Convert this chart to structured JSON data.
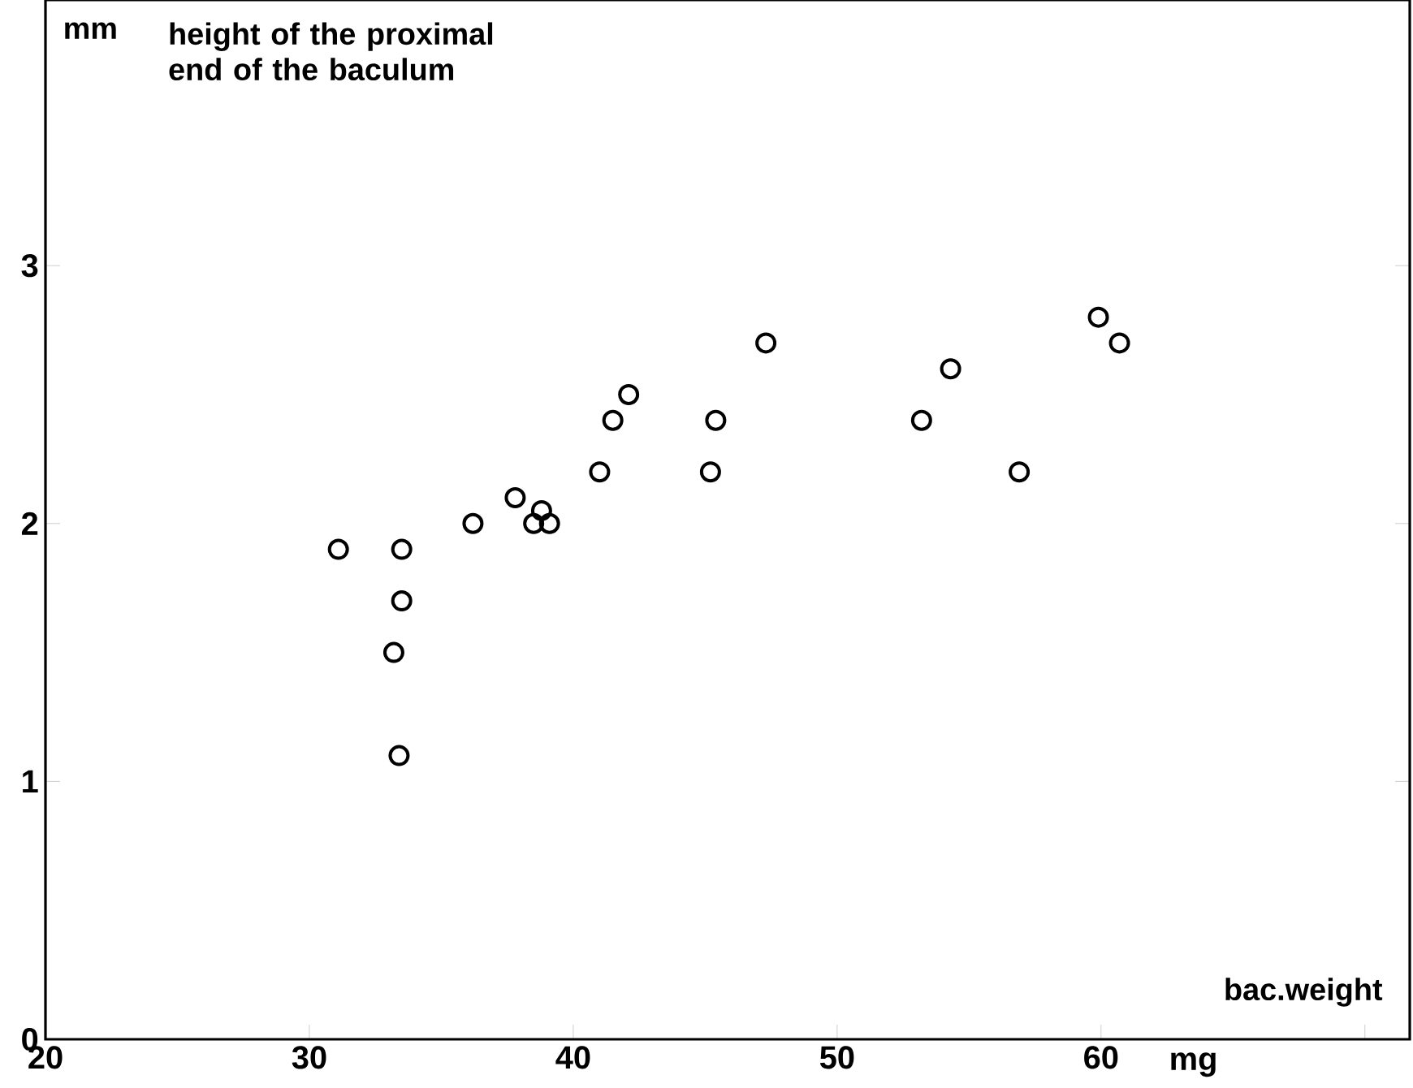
{
  "chart_data": {
    "type": "scatter",
    "title": "height of the proximal end of the baculum",
    "ylabel": "mm",
    "xlabel": "mg",
    "annotations": [
      "bac.weight"
    ],
    "x": [
      31.1,
      33.5,
      33.5,
      33.2,
      33.4,
      36.2,
      37.8,
      38.5,
      38.8,
      39.1,
      41.0,
      41.5,
      42.1,
      45.2,
      45.4,
      47.3,
      53.2,
      54.3,
      56.9,
      59.9,
      60.7
    ],
    "values": [
      1.9,
      1.9,
      1.7,
      1.5,
      1.1,
      2.0,
      2.1,
      2.0,
      2.05,
      2.0,
      2.2,
      2.4,
      2.5,
      2.2,
      2.4,
      2.7,
      2.4,
      2.6,
      2.2,
      2.8,
      2.7
    ],
    "color": "#000000",
    "marker": "circle",
    "grid": false,
    "xlim": [
      20,
      71.7
    ],
    "ylim": [
      0,
      4.03
    ],
    "xticks": [
      20,
      30,
      40,
      50,
      60,
      {
        "value": 70,
        "label": null
      }
    ],
    "yticks": [
      0,
      1,
      2,
      3
    ]
  }
}
